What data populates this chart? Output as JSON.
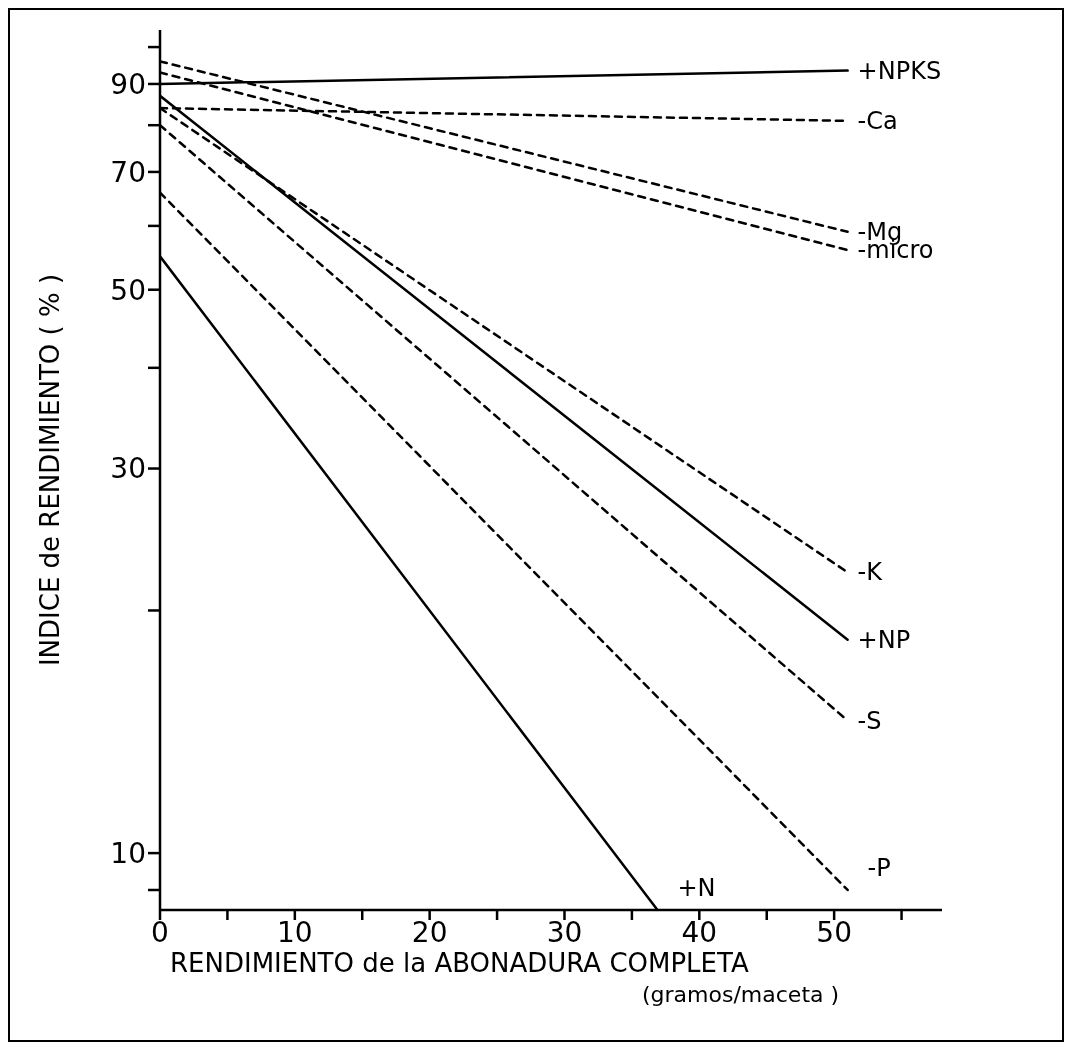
{
  "chart_data": {
    "type": "line",
    "xlabel": "RENDIMIENTO de la ABONADURA COMPLETA",
    "annotations": [
      "(gramos/maceta )"
    ],
    "ylabel": "INDICE  de  RENDIMIENTO  ( % )",
    "log": "y",
    "marker": "none",
    "xlim": [
      0,
      58
    ],
    "xticks": [
      0,
      {
        "value": 5,
        "label": null
      },
      10,
      {
        "value": 15,
        "label": null
      },
      20,
      {
        "value": 25,
        "label": null
      },
      30,
      {
        "value": 35,
        "label": null
      },
      40,
      {
        "value": 45,
        "label": null
      },
      50,
      {
        "value": 55,
        "label": null
      }
    ],
    "ylim": [
      8.5,
      105
    ],
    "yticks": [
      {
        "value": 9,
        "label": null
      },
      10,
      {
        "value": 20,
        "label": null
      },
      30,
      {
        "value": 40,
        "label": null
      },
      50,
      {
        "value": 60,
        "label": null
      },
      70,
      {
        "value": 80,
        "label": null
      },
      90,
      {
        "value": 100,
        "label": null
      }
    ],
    "series": [
      {
        "name": "+NPKS",
        "color": "#000000",
        "line_style": "solid",
        "x": [
          0,
          51
        ],
        "values": [
          90,
          93.5
        ]
      },
      {
        "name": "-Ca",
        "color": "#000000",
        "line_style": "dashed",
        "x": [
          0,
          51
        ],
        "values": [
          84,
          81
        ]
      },
      {
        "name": "-Mg",
        "color": "#000000",
        "line_style": "dashed",
        "x": [
          0,
          51
        ],
        "values": [
          96,
          59
        ]
      },
      {
        "name": "-micro",
        "color": "#000000",
        "line_style": "dashed",
        "x": [
          0,
          51
        ],
        "values": [
          93,
          56
        ]
      },
      {
        "name": "-K",
        "color": "#000000",
        "line_style": "dashed",
        "x": [
          0,
          51
        ],
        "values": [
          84,
          22.3
        ]
      },
      {
        "name": "+NP",
        "color": "#000000",
        "line_style": "solid",
        "x": [
          0,
          51
        ],
        "values": [
          87,
          18.4
        ]
      },
      {
        "name": "-S",
        "color": "#000000",
        "line_style": "dashed",
        "x": [
          0,
          51
        ],
        "values": [
          80,
          14.6
        ]
      },
      {
        "name": "-P",
        "color": "#000000",
        "line_style": "dashed",
        "x": [
          0,
          51
        ],
        "values": [
          66,
          9
        ]
      },
      {
        "name": "+N",
        "color": "#000000",
        "line_style": "solid",
        "x": [
          0,
          36.9
        ],
        "values": [
          55,
          8.5
        ]
      }
    ]
  }
}
